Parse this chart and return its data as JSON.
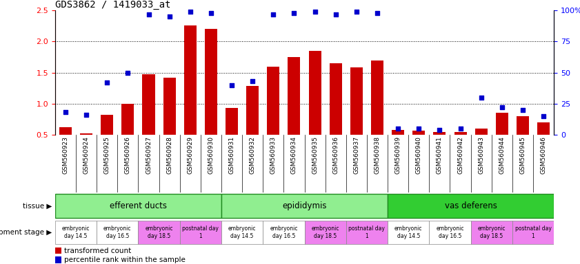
{
  "title": "GDS3862 / 1419033_at",
  "samples": [
    "GSM560923",
    "GSM560924",
    "GSM560925",
    "GSM560926",
    "GSM560927",
    "GSM560928",
    "GSM560929",
    "GSM560930",
    "GSM560931",
    "GSM560932",
    "GSM560933",
    "GSM560934",
    "GSM560935",
    "GSM560936",
    "GSM560937",
    "GSM560938",
    "GSM560939",
    "GSM560940",
    "GSM560941",
    "GSM560942",
    "GSM560943",
    "GSM560944",
    "GSM560945",
    "GSM560946"
  ],
  "transformed_count": [
    0.62,
    0.52,
    0.82,
    1.0,
    1.47,
    1.42,
    2.26,
    2.2,
    0.93,
    1.28,
    1.6,
    1.75,
    1.85,
    1.65,
    1.58,
    1.7,
    0.58,
    0.57,
    0.54,
    0.54,
    0.6,
    0.85,
    0.8,
    0.7
  ],
  "percentile_rank": [
    18,
    16,
    42,
    50,
    97,
    95,
    99,
    98,
    40,
    43,
    97,
    98,
    99,
    97,
    99,
    98,
    5,
    5,
    4,
    5,
    30,
    22,
    20,
    15
  ],
  "ylim_left": [
    0.5,
    2.5
  ],
  "ylim_right": [
    0,
    100
  ],
  "yticks_left": [
    0.5,
    1.0,
    1.5,
    2.0,
    2.5
  ],
  "yticks_right": [
    0,
    25,
    50,
    75,
    100
  ],
  "bar_color": "#cc0000",
  "marker_color": "#0000cc",
  "tissue_groups": [
    {
      "label": "efferent ducts",
      "start": 0,
      "end": 8,
      "color": "#90ee90"
    },
    {
      "label": "epididymis",
      "start": 8,
      "end": 16,
      "color": "#90ee90"
    },
    {
      "label": "vas deferens",
      "start": 16,
      "end": 24,
      "color": "#32cd32"
    }
  ],
  "dev_stages": [
    {
      "label": "embryonic\nday 14.5",
      "start": 0,
      "end": 2,
      "color": "#ffffff"
    },
    {
      "label": "embryonic\nday 16.5",
      "start": 2,
      "end": 4,
      "color": "#ffffff"
    },
    {
      "label": "embryonic\nday 18.5",
      "start": 4,
      "end": 6,
      "color": "#ee82ee"
    },
    {
      "label": "postnatal day\n1",
      "start": 6,
      "end": 8,
      "color": "#ee82ee"
    },
    {
      "label": "embryonic\nday 14.5",
      "start": 8,
      "end": 10,
      "color": "#ffffff"
    },
    {
      "label": "embryonic\nday 16.5",
      "start": 10,
      "end": 12,
      "color": "#ffffff"
    },
    {
      "label": "embryonic\nday 18.5",
      "start": 12,
      "end": 14,
      "color": "#ee82ee"
    },
    {
      "label": "postnatal day\n1",
      "start": 14,
      "end": 16,
      "color": "#ee82ee"
    },
    {
      "label": "embryonic\nday 14.5",
      "start": 16,
      "end": 18,
      "color": "#ffffff"
    },
    {
      "label": "embryonic\nday 16.5",
      "start": 18,
      "end": 20,
      "color": "#ffffff"
    },
    {
      "label": "embryonic\nday 18.5",
      "start": 20,
      "end": 22,
      "color": "#ee82ee"
    },
    {
      "label": "postnatal day\n1",
      "start": 22,
      "end": 24,
      "color": "#ee82ee"
    }
  ],
  "legend_bar_label": "transformed count",
  "legend_marker_label": "percentile rank within the sample",
  "bg_color": "#d3d3d3"
}
